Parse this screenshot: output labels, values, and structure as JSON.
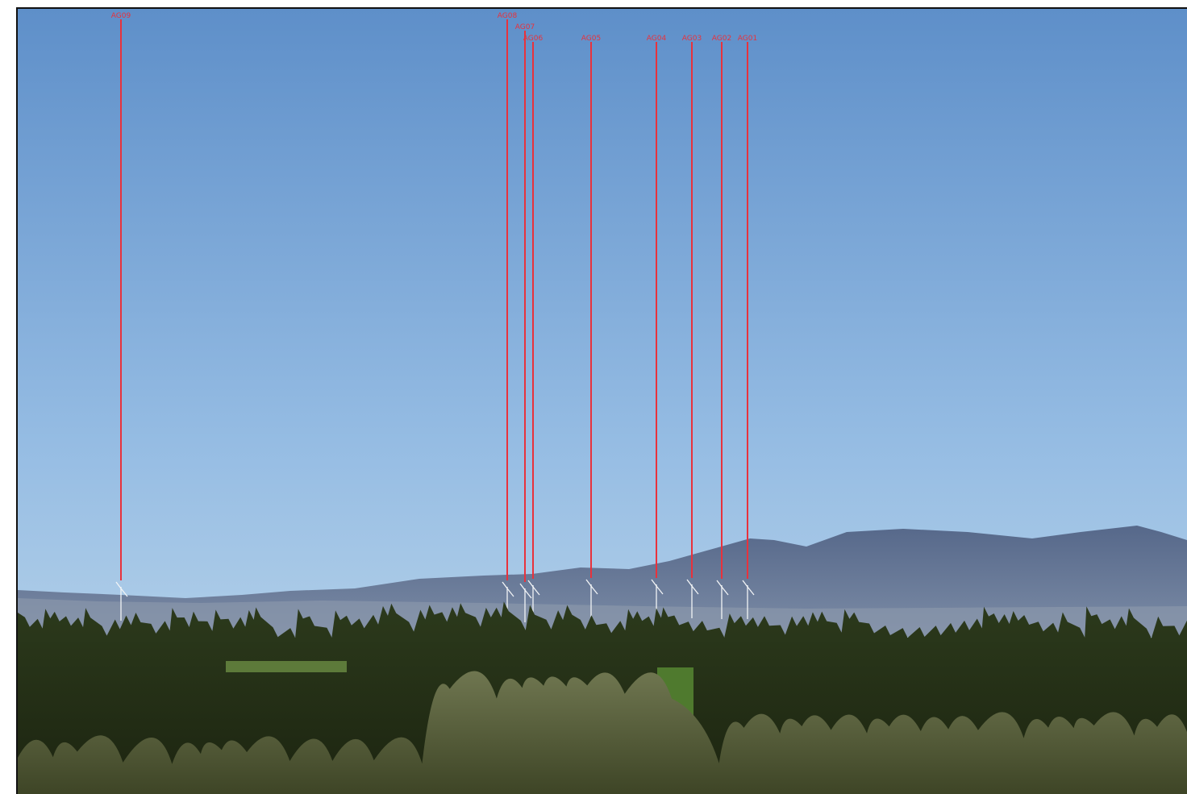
{
  "photo": {
    "markers": [
      {
        "label": "AG09"
      },
      {
        "label": "AG08"
      },
      {
        "label": "AG07"
      },
      {
        "label": "AG06"
      },
      {
        "label": "AG05"
      },
      {
        "label": "AG04"
      },
      {
        "label": "AG03"
      },
      {
        "label": "AG02"
      },
      {
        "label": "AG01"
      }
    ]
  }
}
